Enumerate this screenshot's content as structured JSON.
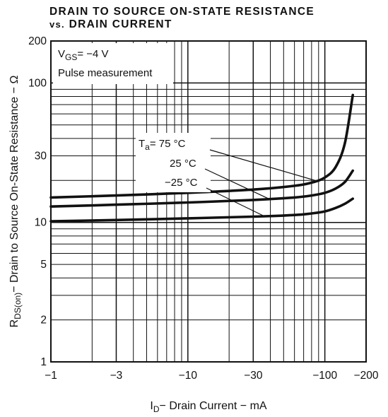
{
  "chart_data": {
    "type": "line",
    "title_line1": "DRAIN TO SOURCE ON-STATE RESISTANCE",
    "title_line2_prefix": "vs.",
    "title_line2_rest": "DRAIN CURRENT",
    "xlabel_sub": "D",
    "xlabel_main": "I",
    "xlabel_rest": "− Drain Current − mA",
    "ylabel_main": "R",
    "ylabel_sub": "DS(on)",
    "ylabel_rest": "− Drain to Source On-State Resistance − Ω",
    "x_scale": "log",
    "y_scale": "log",
    "xlim": [
      -1,
      -200
    ],
    "ylim": [
      1,
      200
    ],
    "x_ticks": [
      {
        "value": -1,
        "label": "−1"
      },
      {
        "value": -3,
        "label": "−3"
      },
      {
        "value": -10,
        "label": "−10"
      },
      {
        "value": -30,
        "label": "−30"
      },
      {
        "value": -100,
        "label": "−100"
      },
      {
        "value": -200,
        "label": "−200"
      }
    ],
    "y_ticks": [
      {
        "value": 1,
        "label": "1"
      },
      {
        "value": 2,
        "label": "2"
      },
      {
        "value": 5,
        "label": "5"
      },
      {
        "value": 10,
        "label": "10"
      },
      {
        "value": 30,
        "label": "30"
      },
      {
        "value": 100,
        "label": "100"
      },
      {
        "value": 200,
        "label": "200"
      }
    ],
    "grid": true,
    "condition_vgs_main": "V",
    "condition_vgs_sub": "GS",
    "condition_vgs_value": "= −4 V",
    "condition_pulse": "Pulse measurement",
    "series": [
      {
        "name_prefix": "T",
        "name_sub": "a",
        "name": "= 75 °C",
        "x": [
          -1,
          -3,
          -10,
          -30,
          -60,
          -80,
          -100,
          -120,
          -140,
          -160
        ],
        "y": [
          15.1,
          15.6,
          16.3,
          17.2,
          18.3,
          19.3,
          21.0,
          25.0,
          37.0,
          82.0
        ]
      },
      {
        "name": "25 °C",
        "x": [
          -1,
          -3,
          -10,
          -30,
          -60,
          -80,
          -100,
          -120,
          -140,
          -160
        ],
        "y": [
          13.0,
          13.4,
          13.9,
          14.5,
          15.1,
          15.6,
          16.3,
          17.5,
          19.5,
          23.5
        ]
      },
      {
        "name": "−25 °C",
        "x": [
          -1,
          -3,
          -10,
          -30,
          -60,
          -80,
          -100,
          -120,
          -140,
          -160
        ],
        "y": [
          10.2,
          10.4,
          10.7,
          11.0,
          11.3,
          11.6,
          12.0,
          12.7,
          13.6,
          14.8
        ]
      }
    ]
  }
}
